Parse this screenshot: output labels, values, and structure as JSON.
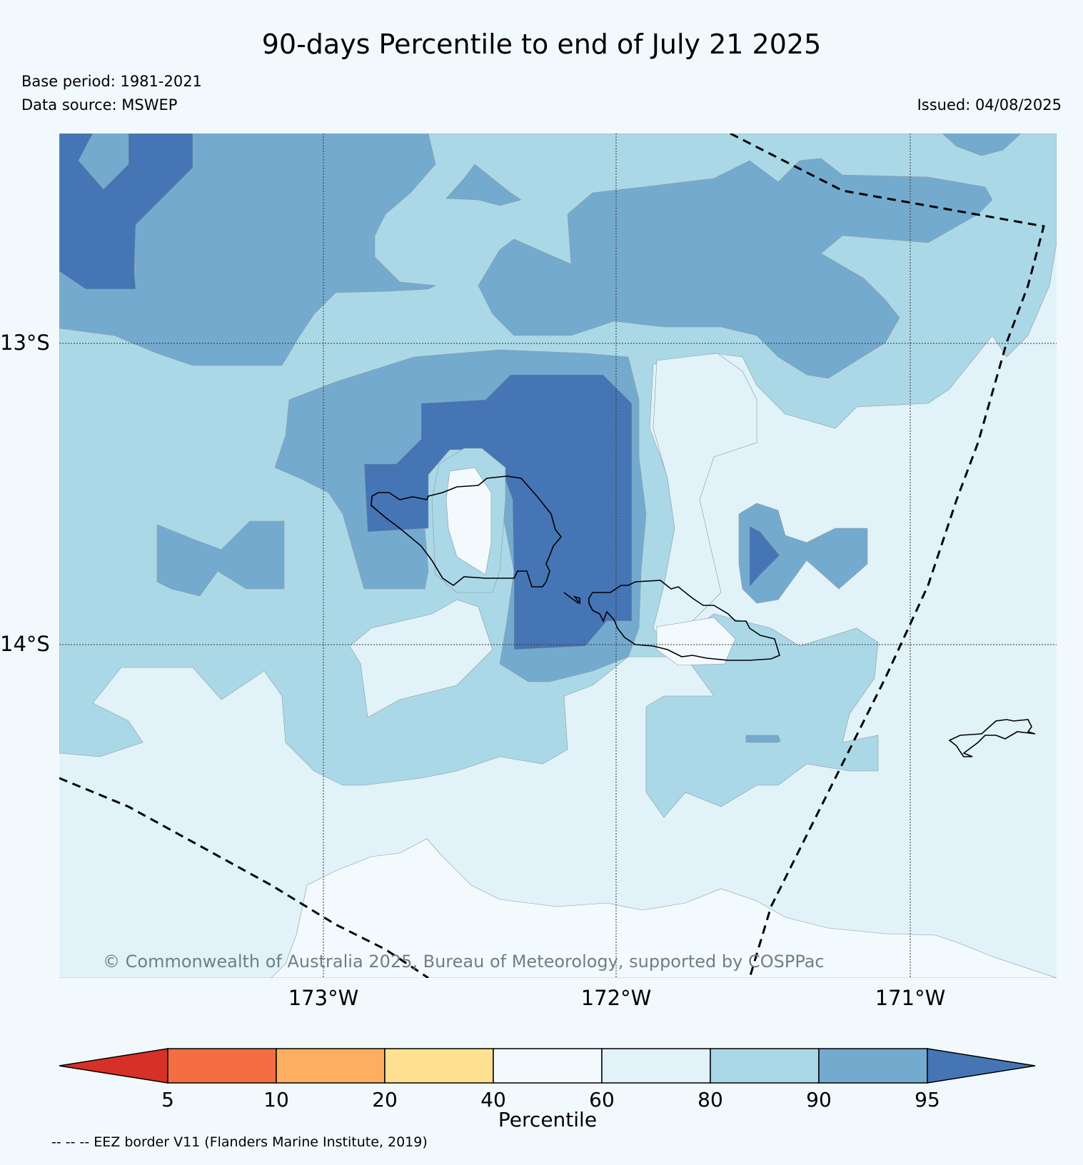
{
  "header": {
    "title": "90-days Percentile to end of July 21 2025",
    "base_period": "Base period: 1981-2021",
    "data_source": "Data source: MSWEP",
    "issued": "Issued: 04/08/2025"
  },
  "map": {
    "lat_labels": [
      "13°S",
      "14°S"
    ],
    "lon_labels": [
      "173°W",
      "172°W",
      "171°W"
    ],
    "copyright": "© Commonwealth of Australia 2025, Bureau of Meteorology, supported by COSPPac",
    "colors": {
      "p60_80": "#e1f2f8",
      "p80_90": "#abd8e7",
      "p90_95": "#75aacf",
      "p95_plus": "#4575b4",
      "p40_60": "#f3fafd"
    }
  },
  "colorbar": {
    "label": "Percentile",
    "ticks": [
      "5",
      "10",
      "20",
      "40",
      "60",
      "80",
      "90",
      "95"
    ],
    "colors": [
      "#d73027",
      "#f46d43",
      "#fdae61",
      "#fee090",
      "#f3fafd",
      "#e1f2f8",
      "#abd8e7",
      "#75aacf",
      "#4575b4"
    ]
  },
  "footnote": "-- -- -- EEZ border V11 (Flanders Marine Institute, 2019)"
}
